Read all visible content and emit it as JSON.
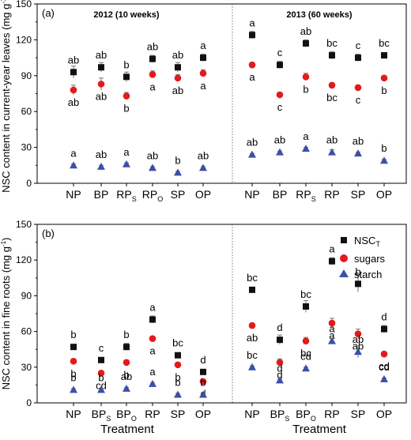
{
  "colors": {
    "total": "#111111",
    "sugars": "#e31a1c",
    "starch": "#3b4fa8",
    "errorbar": "#777777"
  },
  "legend": {
    "total_label": "NSC",
    "total_sub": "T",
    "sugars_label": "sugars",
    "starch_label": "starch"
  },
  "xlabel": "Treatment",
  "chart_data": [
    {
      "type": "scatter",
      "panel": "(a)",
      "ylabel": "NSC content in current-year leaves (mg g-1)",
      "ylabel_main": "NSC content in current-year leaves (mg g",
      "ylabel_sup": "-1",
      "ylim": [
        0,
        150
      ],
      "yticks": [
        0,
        30,
        60,
        90,
        120,
        150
      ],
      "groups": [
        {
          "title": "2012 (10 weeks)",
          "categories": [
            {
              "main": "NP",
              "sub": ""
            },
            {
              "main": "BP",
              "sub": ""
            },
            {
              "main": "RP",
              "sub": "S"
            },
            {
              "main": "RP",
              "sub": "O"
            },
            {
              "main": "SP",
              "sub": ""
            },
            {
              "main": "OP",
              "sub": ""
            }
          ],
          "series": [
            {
              "key": "total",
              "name": "NSC_T",
              "values": [
                93,
                97,
                89,
                104,
                97,
                105
              ],
              "errors": [
                5,
                4,
                4,
                3,
                4,
                3
              ],
              "labels": [
                "ab",
                "ab",
                "b",
                "ab",
                "ab",
                "a"
              ]
            },
            {
              "key": "sugars",
              "values": [
                78,
                83,
                73,
                91,
                88,
                92
              ],
              "errors": [
                4,
                5,
                3,
                3,
                3,
                3
              ],
              "labels": [
                "ab",
                "ab",
                "b",
                "a",
                "ab",
                "a"
              ]
            },
            {
              "key": "starch",
              "values": [
                15,
                14,
                16,
                13,
                9,
                13
              ],
              "errors": [
                1,
                1,
                1,
                1,
                1,
                1
              ],
              "labels": [
                "a",
                "ab",
                "a",
                "ab",
                "b",
                "ab"
              ]
            }
          ]
        },
        {
          "title": "2013 (60 weeks)",
          "categories": [
            {
              "main": "NP",
              "sub": ""
            },
            {
              "main": "BP",
              "sub": ""
            },
            {
              "main": "RP",
              "sub": "S"
            },
            {
              "main": "RP",
              "sub": ""
            },
            {
              "main": "SP",
              "sub": ""
            },
            {
              "main": "OP",
              "sub": ""
            }
          ],
          "series": [
            {
              "key": "total",
              "name": "NSC_T",
              "values": [
                124,
                99,
                117,
                107,
                105,
                107
              ],
              "errors": [
                3,
                3,
                3,
                3,
                3,
                2
              ],
              "labels": [
                "a",
                "c",
                "ab",
                "bc",
                "c",
                "bc"
              ]
            },
            {
              "key": "sugars",
              "values": [
                99,
                74,
                89,
                82,
                80,
                88
              ],
              "errors": [
                2,
                2,
                3,
                2,
                2,
                2
              ],
              "labels": [
                "a",
                "c",
                "b",
                "bc",
                "c",
                "b"
              ]
            },
            {
              "key": "starch",
              "values": [
                24,
                26,
                29,
                26,
                25,
                19
              ],
              "errors": [
                1,
                1,
                1,
                2,
                1,
                1
              ],
              "labels": [
                "ab",
                "ab",
                "a",
                "ab",
                "ab",
                "b"
              ]
            }
          ]
        }
      ]
    },
    {
      "type": "scatter",
      "panel": "(b)",
      "ylabel": "NSC content in fine roots (mg g-1)",
      "ylabel_main": "NSC content in fine roots (mg g",
      "ylabel_sup": "-1",
      "ylim": [
        0,
        150
      ],
      "yticks": [
        0,
        30,
        60,
        90,
        120,
        150
      ],
      "groups": [
        {
          "title": "",
          "categories": [
            {
              "main": "NP",
              "sub": ""
            },
            {
              "main": "BP",
              "sub": "S"
            },
            {
              "main": "BP",
              "sub": "O"
            },
            {
              "main": "RP",
              "sub": ""
            },
            {
              "main": "SP",
              "sub": ""
            },
            {
              "main": "OP",
              "sub": ""
            }
          ],
          "series": [
            {
              "key": "total",
              "name": "NSC_T",
              "values": [
                47,
                36,
                47,
                70,
                40,
                26
              ],
              "errors": [
                2,
                2,
                3,
                3,
                2,
                2
              ],
              "labels": [
                "b",
                "c",
                "b",
                "a",
                "bc",
                "d"
              ]
            },
            {
              "key": "sugars",
              "values": [
                35,
                25,
                34,
                54,
                32,
                18
              ],
              "errors": [
                2,
                2,
                2,
                2,
                2,
                1
              ],
              "labels": [
                "b",
                "cd",
                "b",
                "a",
                "b",
                "d"
              ]
            },
            {
              "key": "starch",
              "values": [
                11,
                11,
                12,
                16,
                7,
                7
              ],
              "errors": [
                1,
                1,
                1,
                1,
                1,
                1
              ],
              "labels": [
                "b",
                "b",
                "ab",
                "a",
                "b",
                "b"
              ]
            }
          ]
        },
        {
          "title": "",
          "categories": [
            {
              "main": "NP",
              "sub": ""
            },
            {
              "main": "BP",
              "sub": "S"
            },
            {
              "main": "BP",
              "sub": "O"
            },
            {
              "main": "RP",
              "sub": ""
            },
            {
              "main": "SP",
              "sub": ""
            },
            {
              "main": "OP",
              "sub": ""
            }
          ],
          "series": [
            {
              "key": "total",
              "name": "NSC_T",
              "values": [
                95,
                53,
                81,
                119,
                100,
                62
              ],
              "errors": [
                2,
                4,
                5,
                3,
                7,
                3
              ],
              "labels": [
                "bc",
                "d",
                "bc",
                "a",
                "b",
                "d"
              ]
            },
            {
              "key": "sugars",
              "values": [
                65,
                34,
                52,
                67,
                58,
                41
              ],
              "errors": [
                2,
                3,
                3,
                4,
                4,
                2
              ],
              "labels": [
                "ab",
                "d",
                "bc",
                "a",
                "ab",
                "cd"
              ]
            },
            {
              "key": "starch",
              "values": [
                30,
                19,
                29,
                52,
                43,
                20
              ],
              "errors": [
                1,
                1,
                1,
                2,
                5,
                1
              ],
              "labels": [
                "bc",
                "d",
                "cd",
                "a",
                "ab",
                "cd"
              ]
            }
          ]
        }
      ]
    }
  ]
}
